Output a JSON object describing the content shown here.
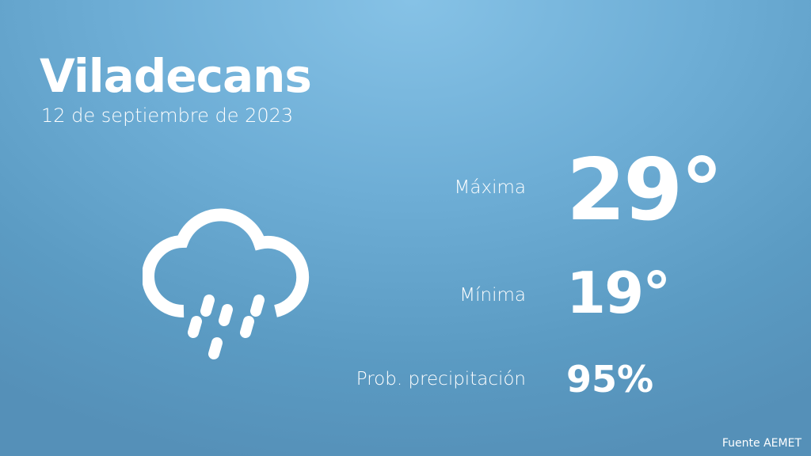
{
  "city": "Viladecans",
  "date": "12 de septiembre de 2023",
  "weather_icon": "cloud-rain-icon",
  "max": {
    "label": "Máxima",
    "value": "29°"
  },
  "min": {
    "label": "Mínima",
    "value": "19°"
  },
  "precip": {
    "label": "Prob. precipitación",
    "value": "95%"
  },
  "source": "Fuente AEMET",
  "colors": {
    "background_top": "#86c2e6",
    "background_bottom": "#5590b8",
    "text": "#ffffff"
  }
}
